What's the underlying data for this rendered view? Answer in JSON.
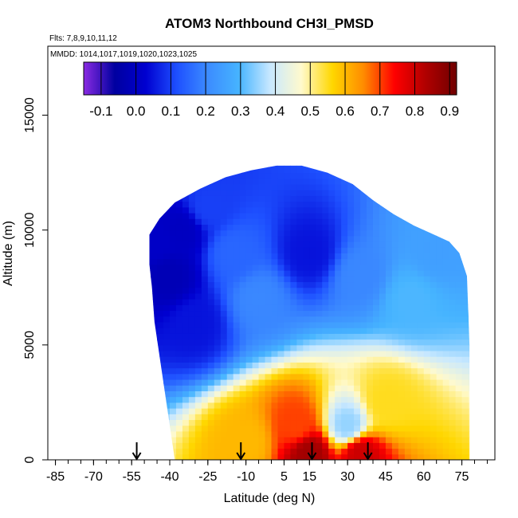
{
  "chart_data": {
    "type": "heatmap",
    "title": "ATOM3 Northbound CH3I_PMSD",
    "flights_label": "Flts: 7,8,9,10,11,12",
    "mmdd_label": "MMDD: 1014,1017,1019,1020,1023,1025",
    "xlabel": "Latitude (deg N)",
    "ylabel": "Altitude (m)",
    "xlim": [
      -88,
      88
    ],
    "ylim": [
      0,
      18000
    ],
    "x_ticks": [
      -85,
      -70,
      -55,
      -40,
      -25,
      -10,
      5,
      15,
      30,
      45,
      60,
      75
    ],
    "y_ticks": [
      0,
      5000,
      10000,
      15000
    ],
    "colorbar": {
      "ticks": [
        -0.1,
        0.0,
        0.1,
        0.2,
        0.3,
        0.4,
        0.5,
        0.6,
        0.7,
        0.8,
        0.9
      ],
      "tick_labels": [
        "-0.1",
        "0.0",
        "0.1",
        "0.2",
        "0.3",
        "0.4",
        "0.5",
        "0.6",
        "0.7",
        "0.8",
        "0.9"
      ],
      "range": [
        -0.15,
        0.92
      ],
      "colors": [
        "#8a2be2",
        "#0000a0",
        "#0000d0",
        "#1e50ff",
        "#3c8cff",
        "#46b4ff",
        "#c8e8ff",
        "#fffacd",
        "#ffd700",
        "#ff8c00",
        "#ff0000",
        "#b00000",
        "#700000"
      ]
    },
    "profile_markers_lat": [
      -53,
      -12,
      16,
      38
    ],
    "envelope": {
      "lat": [
        -38,
        -40,
        -42,
        -44,
        -46,
        -47,
        -48,
        -48,
        -44,
        -38,
        -28,
        -18,
        -8,
        2,
        12,
        22,
        32,
        40,
        48,
        56,
        64,
        70,
        74,
        77,
        78,
        78
      ],
      "top_alt": [
        0,
        1500,
        3000,
        4500,
        6000,
        7500,
        8500,
        9800,
        10500,
        11200,
        11800,
        12300,
        12600,
        12800,
        12800,
        12500,
        12000,
        11300,
        10700,
        10200,
        9800,
        9500,
        9000,
        8000,
        5000,
        0
      ]
    },
    "field_points": [
      {
        "lat": -45,
        "alt": 9500,
        "value": 0.01
      },
      {
        "lat": -40,
        "alt": 8000,
        "value": -0.02
      },
      {
        "lat": -35,
        "alt": 10000,
        "value": 0.0
      },
      {
        "lat": -30,
        "alt": 6000,
        "value": 0.05
      },
      {
        "lat": -25,
        "alt": 11000,
        "value": 0.1
      },
      {
        "lat": -15,
        "alt": 9000,
        "value": 0.15
      },
      {
        "lat": -5,
        "alt": 7000,
        "value": 0.2
      },
      {
        "lat": 15,
        "alt": 9000,
        "value": 0.05
      },
      {
        "lat": 35,
        "alt": 8000,
        "value": 0.2
      },
      {
        "lat": 55,
        "alt": 7000,
        "value": 0.3
      },
      {
        "lat": 65,
        "alt": 9000,
        "value": 0.25
      },
      {
        "lat": 30,
        "alt": 1500,
        "value": 0.35
      },
      {
        "lat": -10,
        "alt": 800,
        "value": 0.6
      },
      {
        "lat": 15,
        "alt": 300,
        "value": 0.85
      },
      {
        "lat": 35,
        "alt": 300,
        "value": 0.8
      },
      {
        "lat": 10,
        "alt": 1500,
        "value": 0.7
      },
      {
        "lat": 45,
        "alt": 2500,
        "value": 0.55
      }
    ]
  }
}
